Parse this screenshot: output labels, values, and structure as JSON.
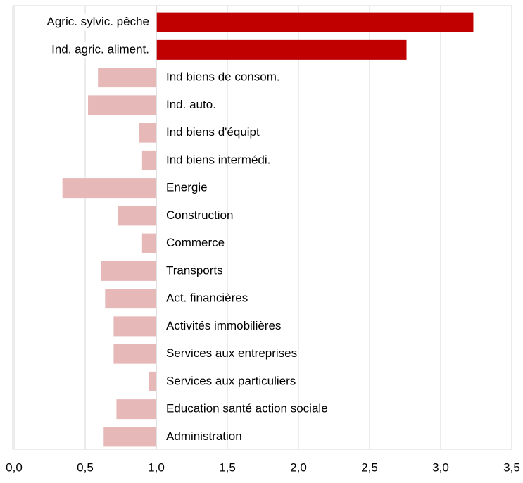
{
  "chart_data": {
    "type": "bar",
    "orientation": "horizontal",
    "categories": [
      "Agric. sylvic. pêche",
      "Ind. agric. aliment.",
      "Ind biens de consom.",
      "Ind. auto.",
      "Ind biens d'équipt",
      "Ind biens intermédi.",
      "Energie",
      "Construction",
      "Commerce",
      "Transports",
      "Act. financières",
      "Activités immobilières",
      "Services aux entreprises",
      "Services aux particuliers",
      "Education santé action sociale",
      "Administration"
    ],
    "values": [
      3.23,
      2.76,
      0.59,
      0.52,
      0.88,
      0.9,
      0.34,
      0.73,
      0.9,
      0.61,
      0.64,
      0.7,
      0.7,
      0.95,
      0.72,
      0.63
    ],
    "colors": [
      "#c00000",
      "#c00000",
      "#e6b8b7",
      "#e6b8b7",
      "#e6b8b7",
      "#e6b8b7",
      "#e6b8b7",
      "#e6b8b7",
      "#e6b8b7",
      "#e6b8b7",
      "#e6b8b7",
      "#e6b8b7",
      "#e6b8b7",
      "#e6b8b7",
      "#e6b8b7",
      "#e6b8b7"
    ],
    "base": 1,
    "xlim": [
      0,
      3.5
    ],
    "xticks": [
      {
        "value": 0,
        "label": "0,0"
      },
      {
        "value": 0.5,
        "label": "0,5"
      },
      {
        "value": 1,
        "label": "1,0"
      },
      {
        "value": 1.5,
        "label": "1,5"
      },
      {
        "value": 2,
        "label": "2,0"
      },
      {
        "value": 2.5,
        "label": "2,5"
      },
      {
        "value": 3,
        "label": "3,0"
      },
      {
        "value": 3.5,
        "label": "3,5"
      }
    ],
    "grid": true
  }
}
